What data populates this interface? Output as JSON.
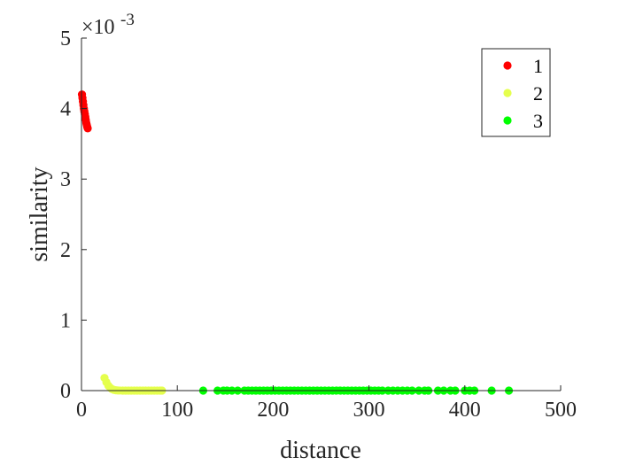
{
  "chart_data": {
    "type": "scatter",
    "xlabel": "distance",
    "ylabel": "similarity",
    "xlim": [
      0,
      500
    ],
    "ylim": [
      0,
      0.005
    ],
    "x_ticks": [
      0,
      100,
      200,
      300,
      400,
      500
    ],
    "y_ticks": [
      0,
      0.001,
      0.002,
      0.003,
      0.004,
      0.005
    ],
    "y_tick_labels": [
      "0",
      "1",
      "2",
      "3",
      "4",
      "5"
    ],
    "y_exponent_label": "×10",
    "y_exponent_power": "-3",
    "grid": false,
    "legend": {
      "position": "top-right",
      "entries": [
        "1",
        "2",
        "3"
      ]
    },
    "series": [
      {
        "name": "1",
        "color": "#ff0000",
        "x": [
          0.5,
          1.0,
          1.5,
          2.0,
          2.5,
          3.0,
          3.5,
          4.0,
          4.5,
          5.0,
          5.5,
          6.0,
          6.5
        ],
        "y": [
          0.0042,
          0.00415,
          0.0041,
          0.00405,
          0.004,
          0.00396,
          0.00392,
          0.00388,
          0.00384,
          0.0038,
          0.00377,
          0.00374,
          0.00372
        ]
      },
      {
        "name": "2",
        "color": "#e5ff4d",
        "x": [
          24,
          26,
          28,
          30,
          32,
          34,
          36,
          38,
          40,
          43,
          46,
          49,
          52,
          55,
          58,
          61,
          64,
          67,
          70,
          73,
          76,
          79,
          82,
          84
        ],
        "y": [
          0.00018,
          0.00012,
          7e-05,
          4e-05,
          2e-05,
          1e-05,
          5e-06,
          2e-06,
          1e-06,
          0,
          0,
          0,
          0,
          0,
          0,
          0,
          0,
          0,
          0,
          0,
          0,
          0,
          0,
          0
        ]
      },
      {
        "name": "3",
        "color": "#00ff00",
        "x": [
          127,
          142,
          148,
          152,
          157,
          163,
          170,
          174,
          178,
          182,
          186,
          190,
          194,
          198,
          202,
          206,
          210,
          214,
          218,
          222,
          226,
          230,
          234,
          238,
          242,
          246,
          250,
          254,
          258,
          262,
          266,
          270,
          274,
          278,
          282,
          286,
          290,
          294,
          298,
          302,
          306,
          310,
          314,
          320,
          325,
          330,
          335,
          340,
          345,
          352,
          358,
          362,
          372,
          378,
          385,
          390,
          400,
          405,
          410,
          428,
          446
        ],
        "y": [
          0,
          0,
          0,
          0,
          0,
          0,
          0,
          0,
          0,
          0,
          0,
          0,
          0,
          0,
          0,
          0,
          0,
          0,
          0,
          0,
          0,
          0,
          0,
          0,
          0,
          0,
          0,
          0,
          0,
          0,
          0,
          0,
          0,
          0,
          0,
          0,
          0,
          0,
          0,
          0,
          0,
          0,
          0,
          0,
          0,
          0,
          0,
          0,
          0,
          0,
          0,
          0,
          0,
          0,
          0,
          0,
          0,
          0,
          0,
          0,
          0
        ]
      }
    ]
  }
}
